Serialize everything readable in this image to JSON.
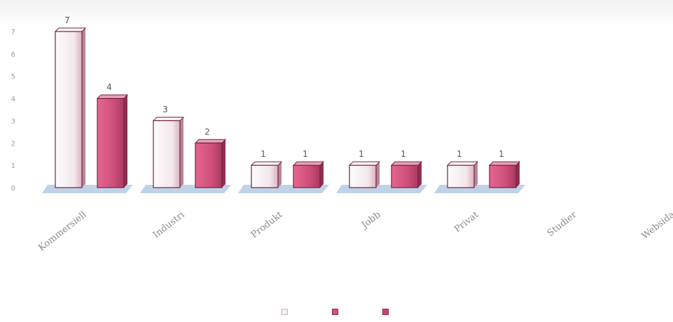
{
  "chart_data": {
    "type": "bar",
    "style": "3d-clustered-column",
    "title": "",
    "xlabel": "",
    "ylabel": "",
    "ylim": [
      0,
      7
    ],
    "yticks": [
      0,
      1,
      2,
      3,
      4,
      5,
      6,
      7
    ],
    "grid": false,
    "legend_position": "bottom",
    "categories": [
      "Kommersiell",
      "Industri",
      "Produkt",
      "Jobb",
      "Privat",
      "Studier",
      "Websida"
    ],
    "series": [
      {
        "name": "",
        "color": "#f4eef0",
        "values": [
          7,
          3,
          1,
          1,
          1,
          0,
          0
        ],
        "labels": [
          "7",
          "3",
          "1",
          "1",
          "1",
          "",
          ""
        ]
      },
      {
        "name": "",
        "color": "#d94f7c",
        "values": [
          0,
          0,
          0,
          0,
          0,
          0,
          0
        ],
        "labels": [
          "",
          "",
          "",
          "",
          "",
          "",
          ""
        ]
      },
      {
        "name": "",
        "color": "#c04a74",
        "values": [
          4,
          2,
          1,
          1,
          1,
          0,
          0
        ],
        "labels": [
          "4",
          "2",
          "1",
          "1",
          "1",
          "",
          ""
        ]
      }
    ],
    "colors": {
      "floor": "#a9c4e0",
      "bar_edge": "#7a2040",
      "top_light": "#fbf7f8",
      "top_dark": "#e5a4bb"
    }
  }
}
